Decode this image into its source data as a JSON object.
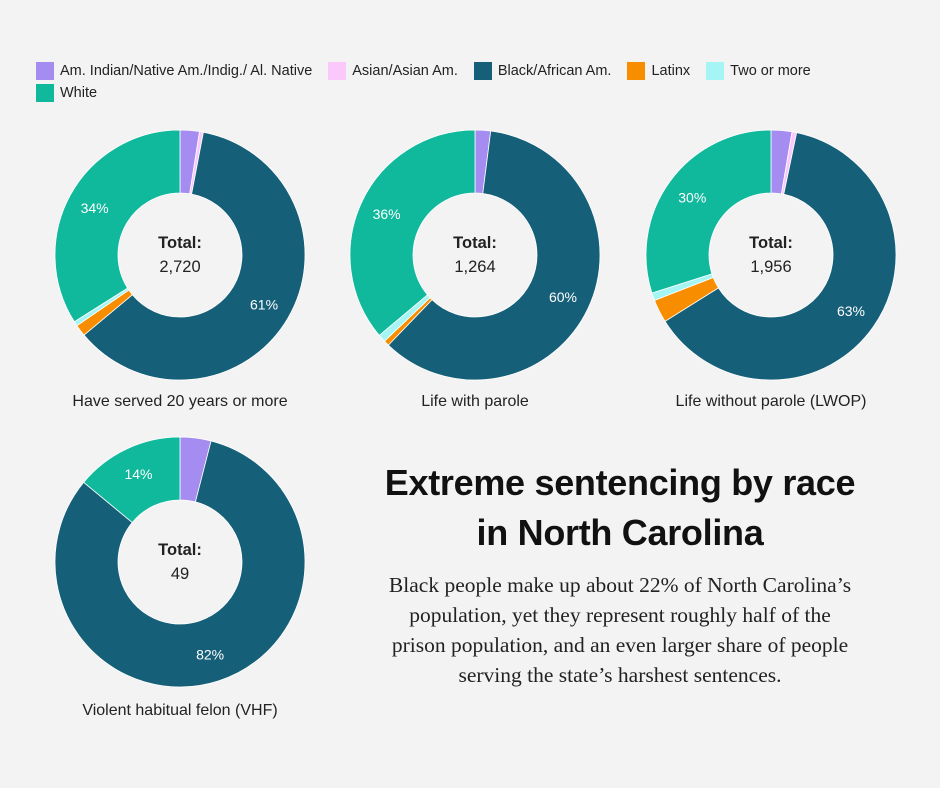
{
  "legend": [
    {
      "label": "Am. Indian/Native Am./Indig./ Al. Native",
      "color": "#a58cf0"
    },
    {
      "label": "Asian/Asian Am.",
      "color": "#fbc8fb"
    },
    {
      "label": "Black/African Am.",
      "color": "#155f78"
    },
    {
      "label": "Latinx",
      "color": "#f88d00"
    },
    {
      "label": "Two or more",
      "color": "#a6f5f5"
    },
    {
      "label": "White",
      "color": "#10b89c"
    }
  ],
  "headline": "Extreme sentencing by race in North Carolina",
  "body": "Black people make up about 22% of North Carolina’s population, yet they represent roughly half of the prison population, and an even larger share of people serving the state’s harshest sentences.",
  "chart_data": [
    {
      "type": "pie",
      "title": "Have served 20 years or more",
      "center_label": "Total:",
      "total": "2,720",
      "categories": [
        "Am. Indian/Native Am./Indig./ Al. Native",
        "Asian/Asian Am.",
        "Black/African Am.",
        "Latinx",
        "Two or more",
        "White"
      ],
      "values": [
        2.5,
        0.5,
        61,
        1.5,
        0.6,
        34
      ],
      "labels": [
        "",
        "",
        "61%",
        "",
        "",
        "34%"
      ]
    },
    {
      "type": "pie",
      "title": "Life with parole",
      "center_label": "Total:",
      "total": "1,264",
      "categories": [
        "Am. Indian/Native Am./Indig./ Al. Native",
        "Asian/Asian Am.",
        "Black/African Am.",
        "Latinx",
        "Two or more",
        "White"
      ],
      "values": [
        2.0,
        0,
        60,
        0.7,
        1.0,
        36
      ],
      "labels": [
        "",
        "",
        "60%",
        "",
        "",
        "36%"
      ]
    },
    {
      "type": "pie",
      "title": "Life without parole (LWOP)",
      "center_label": "Total:",
      "total": "1,956",
      "categories": [
        "Am. Indian/Native Am./Indig./ Al. Native",
        "Asian/Asian Am.",
        "Black/African Am.",
        "Latinx",
        "Two or more",
        "White"
      ],
      "values": [
        2.7,
        0.6,
        63,
        3.0,
        1.0,
        30
      ],
      "labels": [
        "",
        "",
        "63%",
        "",
        "",
        "30%"
      ]
    },
    {
      "type": "pie",
      "title": "Violent habitual felon (VHF)",
      "center_label": "Total:",
      "total": "49",
      "categories": [
        "Am. Indian/Native Am./Indig./ Al. Native",
        "Asian/Asian Am.",
        "Black/African Am.",
        "Latinx",
        "Two or more",
        "White"
      ],
      "values": [
        4,
        0,
        82,
        0,
        0,
        14
      ],
      "labels": [
        "",
        "",
        "82%",
        "",
        "",
        "14%"
      ]
    }
  ]
}
